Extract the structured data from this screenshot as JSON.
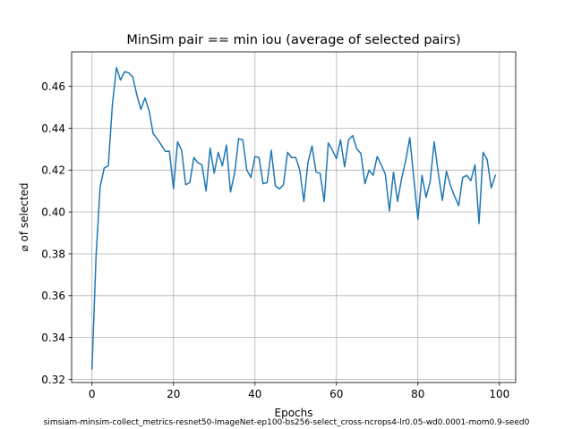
{
  "chart_data": {
    "type": "line",
    "title": "MinSim pair == min iou (average of selected pairs)",
    "xlabel": "Epochs",
    "ylabel": "⌀ of selected",
    "footer": "simsiam-minsim-collect_metrics-resnet50-ImageNet-ep100-bs256-select_cross-ncrops4-lr0.05-wd0.0001-mom0.9-seed0",
    "xlim": [
      -5,
      104
    ],
    "ylim": [
      0.3185,
      0.4765
    ],
    "grid": true,
    "line_color": "#1f77b4",
    "x_ticks": [
      0,
      20,
      40,
      60,
      80,
      100
    ],
    "x_tick_labels": [
      "0",
      "20",
      "40",
      "60",
      "80",
      "100"
    ],
    "y_ticks": [
      0.32,
      0.34,
      0.36,
      0.38,
      0.4,
      0.42,
      0.44,
      0.46
    ],
    "y_tick_labels": [
      "0.32",
      "0.34",
      "0.36",
      "0.38",
      "0.40",
      "0.42",
      "0.44",
      "0.46"
    ],
    "series": [
      {
        "values": [
          0.325,
          0.379,
          0.412,
          0.421,
          0.422,
          0.451,
          0.469,
          0.463,
          0.467,
          0.4665,
          0.4645,
          0.456,
          0.449,
          0.4545,
          0.4485,
          0.4375,
          0.435,
          0.432,
          0.429,
          0.429,
          0.411,
          0.4335,
          0.4295,
          0.413,
          0.414,
          0.426,
          0.4235,
          0.4225,
          0.41,
          0.4305,
          0.4185,
          0.4285,
          0.422,
          0.432,
          0.4095,
          0.4185,
          0.435,
          0.4345,
          0.42,
          0.4165,
          0.4265,
          0.426,
          0.4135,
          0.414,
          0.4295,
          0.4125,
          0.411,
          0.413,
          0.4285,
          0.426,
          0.426,
          0.42,
          0.405,
          0.4235,
          0.4315,
          0.419,
          0.4185,
          0.405,
          0.433,
          0.4295,
          0.4255,
          0.4345,
          0.4215,
          0.4345,
          0.4365,
          0.43,
          0.428,
          0.4135,
          0.42,
          0.4175,
          0.4265,
          0.4225,
          0.418,
          0.4005,
          0.419,
          0.405,
          0.416,
          0.4245,
          0.4355,
          0.416,
          0.3965,
          0.4175,
          0.407,
          0.4145,
          0.4335,
          0.4185,
          0.4055,
          0.4195,
          0.4125,
          0.4075,
          0.403,
          0.4165,
          0.4175,
          0.415,
          0.4225,
          0.3945,
          0.4285,
          0.425,
          0.4115,
          0.4175
        ]
      }
    ]
  }
}
